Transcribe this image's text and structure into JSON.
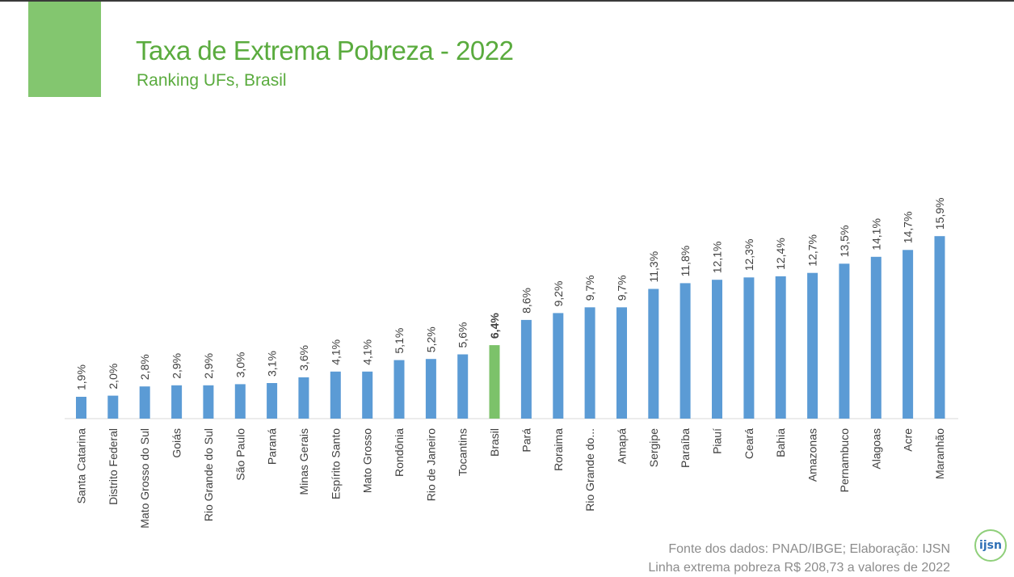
{
  "header": {
    "title": "Taxa de Extrema Pobreza - 2022",
    "subtitle": "Ranking UFs, Brasil"
  },
  "footer": {
    "source": "Fonte dos dados: PNAD/IBGE; Elaboração: IJSN",
    "note": "Linha extrema pobreza R$ 208,73 a valores de 2022"
  },
  "logo": {
    "text": "ijsn"
  },
  "colors": {
    "bar": "#5b9bd5",
    "highlight": "#7cc26a",
    "accent": "#83c66f",
    "title": "#5aab3e"
  },
  "chart_data": {
    "type": "bar",
    "title": "Taxa de Extrema Pobreza - 2022",
    "subtitle": "Ranking UFs, Brasil",
    "categories": [
      "Santa Catarina",
      "Distrito Federal",
      "Mato Grosso do Sul",
      "Goiás",
      "Rio Grande do Sul",
      "São Paulo",
      "Paraná",
      "Minas Gerais",
      "Espírito Santo",
      "Mato Grosso",
      "Rondônia",
      "Rio de Janeiro",
      "Tocantins",
      "Brasil",
      "Pará",
      "Roraima",
      "Rio Grande do...",
      "Amapá",
      "Sergipe",
      "Paraíba",
      "Piauí",
      "Ceará",
      "Bahia",
      "Amazonas",
      "Pernambuco",
      "Alagoas",
      "Acre",
      "Maranhão"
    ],
    "values": [
      1.9,
      2.0,
      2.8,
      2.9,
      2.9,
      3.0,
      3.1,
      3.6,
      4.1,
      4.1,
      5.1,
      5.2,
      5.6,
      6.4,
      8.6,
      9.2,
      9.7,
      9.7,
      11.3,
      11.8,
      12.1,
      12.3,
      12.4,
      12.7,
      13.5,
      14.1,
      14.7,
      15.9
    ],
    "labels": [
      "1,9%",
      "2,0%",
      "2,8%",
      "2,9%",
      "2,9%",
      "3,0%",
      "3,1%",
      "3,6%",
      "4,1%",
      "4,1%",
      "5,1%",
      "5,2%",
      "5,6%",
      "6,4%",
      "8,6%",
      "9,2%",
      "9,7%",
      "9,7%",
      "11,3%",
      "11,8%",
      "12,1%",
      "12,3%",
      "12,4%",
      "12,7%",
      "13,5%",
      "14,1%",
      "14,7%",
      "15,9%"
    ],
    "highlight_category": "Brasil",
    "ylim": [
      0,
      16
    ],
    "grid": false,
    "xlabel": "",
    "ylabel": ""
  }
}
